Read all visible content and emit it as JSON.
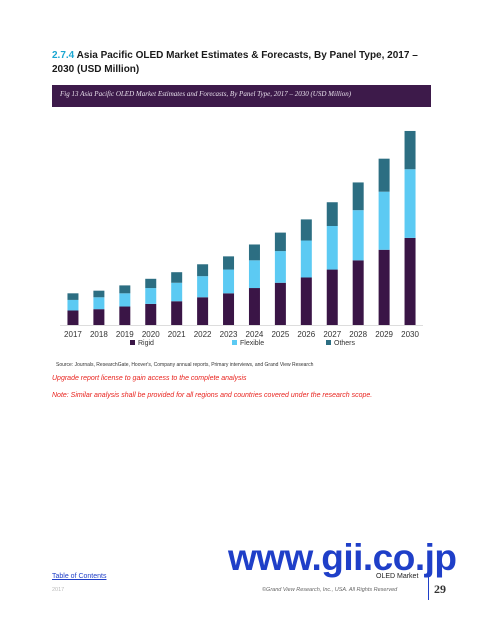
{
  "section": {
    "number": "2.7.4",
    "title": "Asia Pacific OLED Market Estimates & Forecasts, By Panel Type, 2017 – 2030 (USD Million)"
  },
  "figure": {
    "caption": "Fig 13  Asia Pacific OLED Market Estimates and Forecasts, By Panel Type, 2017 – 2030 (USD Million)"
  },
  "chart_data": {
    "type": "bar",
    "stacked": true,
    "title": "",
    "xlabel": "",
    "ylabel": "",
    "categories": [
      "2017",
      "2018",
      "2019",
      "2020",
      "2021",
      "2022",
      "2023",
      "2024",
      "2025",
      "2026",
      "2027",
      "2028",
      "2029",
      "2030"
    ],
    "series": [
      {
        "name": "Rigid",
        "color": "#3a1546",
        "values": [
          11,
          12,
          14,
          16,
          18,
          21,
          24,
          28,
          32,
          36,
          42,
          49,
          57,
          66
        ]
      },
      {
        "name": "Flexible",
        "color": "#5ccaf3",
        "values": [
          8,
          9,
          10,
          12,
          14,
          16,
          18,
          21,
          24,
          28,
          33,
          38,
          44,
          52
        ]
      },
      {
        "name": "Others",
        "color": "#2c6e82",
        "values": [
          5,
          5,
          6,
          7,
          8,
          9,
          10,
          12,
          14,
          16,
          18,
          21,
          25,
          29
        ]
      }
    ],
    "ylim": [
      0,
      150
    ],
    "grid": false,
    "legend_position": "bottom"
  },
  "source": "Source: Journals, ResearchGate, Hoover's, Company annual reports, Primary interviews, and Grand View Research",
  "upgrade_text": "Upgrade report license to gain access to the complete analysis",
  "note_text": "Note: Similar analysis shall be provided for all regions and countries covered under the research scope.",
  "watermark": "www.gii.co.jp",
  "footer": {
    "toc_label": "Table of Contents",
    "market_label": "OLED Market",
    "copyright": "©Grand View Research, Inc., USA. All Rights Reserved",
    "tag": "2017",
    "page_number": "29"
  }
}
